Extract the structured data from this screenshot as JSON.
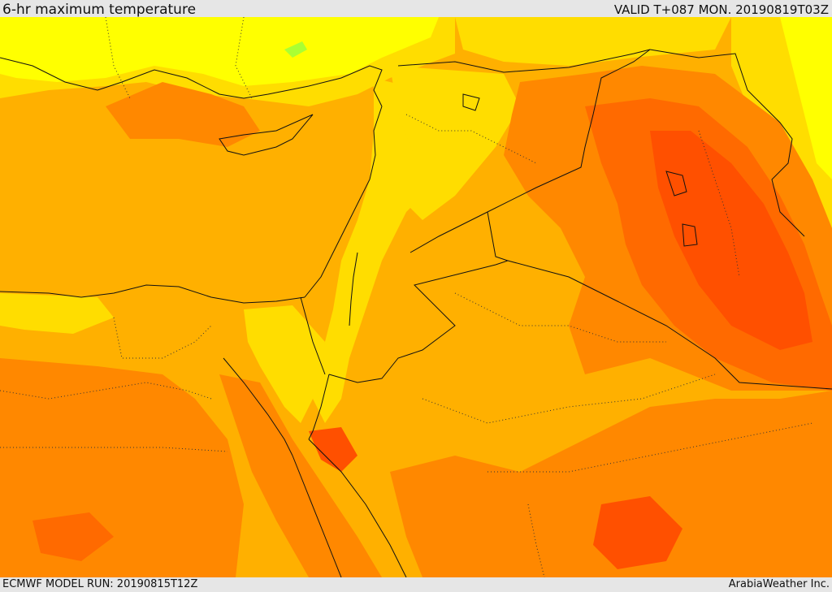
{
  "header": {
    "title": "6-hr maximum temperature",
    "valid": "VALID T+087 MON. 20190819T03Z"
  },
  "footer": {
    "model_run": "ECMWF MODEL RUN: 20190815T12Z",
    "credit": "ArabiaWeather Inc."
  },
  "map": {
    "field": "6-hr maximum temperature",
    "region": "Eastern Mediterranean and Middle East",
    "colors": {
      "pale_yellow": "#ffff00",
      "yellow": "#ffdd00",
      "light_orange": "#ffb000",
      "orange": "#ff8800",
      "dark_orange": "#ff6a00",
      "red_orange": "#ff5000",
      "green_spot": "#aaff33",
      "border": "#111111"
    }
  }
}
